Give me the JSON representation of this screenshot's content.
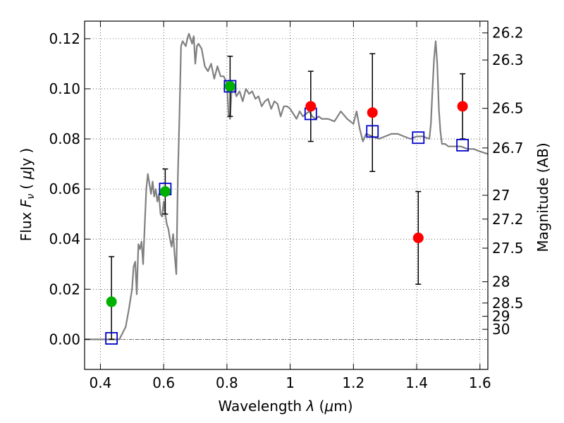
{
  "chart_data": {
    "type": "scatter",
    "xlabel": "Wavelength  λ (μm)",
    "ylabel": "Flux  F_ν  ( μJy )",
    "ylabel_right": "Magnitude (AB)",
    "xlim": [
      0.35,
      1.625
    ],
    "ylim": [
      -0.012,
      0.127
    ],
    "grid": true,
    "x_ticks": [
      0.4,
      0.6,
      0.8,
      1.0,
      1.2,
      1.4,
      1.6
    ],
    "x_tick_labels": [
      "0.4",
      "0.6",
      "0.8",
      "1",
      "1.2",
      "1.4",
      "1.6"
    ],
    "y_ticks": [
      0.0,
      0.02,
      0.04,
      0.06,
      0.08,
      0.1,
      0.12
    ],
    "y_tick_labels": [
      "0.00",
      "0.02",
      "0.04",
      "0.06",
      "0.08",
      "0.10",
      "0.12"
    ],
    "right_ticks": [
      {
        "flux": 0.1223,
        "label": "26.2"
      },
      {
        "flux": 0.1115,
        "label": "26.3"
      },
      {
        "flux": 0.0922,
        "label": "26.5"
      },
      {
        "flux": 0.0764,
        "label": "26.7"
      },
      {
        "flux": 0.0575,
        "label": "27"
      },
      {
        "flux": 0.048,
        "label": "27.2"
      },
      {
        "flux": 0.0364,
        "label": "27.5"
      },
      {
        "flux": 0.023,
        "label": "28"
      },
      {
        "flux": 0.0145,
        "label": "28.5"
      },
      {
        "flux": 0.0092,
        "label": "29"
      },
      {
        "flux": 0.004,
        "label": "30"
      }
    ],
    "series": [
      {
        "kind": "line",
        "color": "#808080",
        "x": [
          0.35,
          0.46,
          0.48,
          0.49,
          0.5,
          0.505,
          0.51,
          0.515,
          0.52,
          0.525,
          0.53,
          0.535,
          0.54,
          0.545,
          0.55,
          0.555,
          0.56,
          0.565,
          0.57,
          0.575,
          0.58,
          0.585,
          0.59,
          0.595,
          0.6,
          0.605,
          0.61,
          0.615,
          0.62,
          0.625,
          0.63,
          0.635,
          0.64,
          0.645,
          0.65,
          0.655,
          0.66,
          0.665,
          0.67,
          0.675,
          0.68,
          0.685,
          0.69,
          0.695,
          0.7,
          0.705,
          0.71,
          0.715,
          0.72,
          0.73,
          0.74,
          0.75,
          0.76,
          0.77,
          0.78,
          0.79,
          0.8,
          0.805,
          0.81,
          0.815,
          0.82,
          0.83,
          0.84,
          0.85,
          0.86,
          0.87,
          0.88,
          0.89,
          0.9,
          0.91,
          0.92,
          0.93,
          0.94,
          0.95,
          0.96,
          0.97,
          0.98,
          0.99,
          1.0,
          1.01,
          1.02,
          1.03,
          1.04,
          1.05,
          1.06,
          1.07,
          1.08,
          1.09,
          1.1,
          1.12,
          1.14,
          1.16,
          1.18,
          1.2,
          1.21,
          1.22,
          1.23,
          1.24,
          1.26,
          1.28,
          1.3,
          1.32,
          1.34,
          1.36,
          1.38,
          1.4,
          1.42,
          1.44,
          1.445,
          1.45,
          1.455,
          1.46,
          1.465,
          1.47,
          1.475,
          1.48,
          1.49,
          1.5,
          1.52,
          1.54,
          1.56,
          1.58,
          1.6,
          1.625
        ],
        "y": [
          0.0,
          0.0,
          0.005,
          0.012,
          0.02,
          0.029,
          0.031,
          0.018,
          0.038,
          0.036,
          0.039,
          0.03,
          0.045,
          0.06,
          0.066,
          0.062,
          0.058,
          0.063,
          0.057,
          0.06,
          0.055,
          0.058,
          0.05,
          0.049,
          0.055,
          0.05,
          0.046,
          0.044,
          0.04,
          0.037,
          0.042,
          0.033,
          0.026,
          0.065,
          0.09,
          0.117,
          0.119,
          0.118,
          0.117,
          0.12,
          0.122,
          0.12,
          0.118,
          0.121,
          0.11,
          0.117,
          0.118,
          0.117,
          0.116,
          0.109,
          0.107,
          0.11,
          0.104,
          0.109,
          0.105,
          0.105,
          0.102,
          0.09,
          0.088,
          0.1,
          0.101,
          0.097,
          0.099,
          0.095,
          0.1,
          0.098,
          0.099,
          0.096,
          0.097,
          0.093,
          0.095,
          0.096,
          0.092,
          0.095,
          0.094,
          0.089,
          0.093,
          0.093,
          0.092,
          0.09,
          0.088,
          0.091,
          0.089,
          0.09,
          0.091,
          0.089,
          0.088,
          0.089,
          0.088,
          0.088,
          0.087,
          0.091,
          0.088,
          0.086,
          0.091,
          0.084,
          0.079,
          0.082,
          0.081,
          0.08,
          0.081,
          0.082,
          0.082,
          0.081,
          0.08,
          0.081,
          0.081,
          0.08,
          0.086,
          0.1,
          0.112,
          0.119,
          0.11,
          0.092,
          0.083,
          0.078,
          0.078,
          0.077,
          0.077,
          0.077,
          0.076,
          0.076,
          0.075,
          0.074
        ]
      },
      {
        "kind": "errorbar",
        "color": "#000000",
        "x": [
          0.435,
          0.605,
          0.81,
          1.065,
          1.26,
          1.405,
          1.545
        ],
        "ylow": [
          0.0,
          0.05,
          0.089,
          0.079,
          0.067,
          0.022,
          0.08
        ],
        "yhigh": [
          0.033,
          0.068,
          0.113,
          0.107,
          0.114,
          0.059,
          0.106
        ]
      },
      {
        "kind": "square-open",
        "color": "#0000cc",
        "x": [
          0.435,
          0.605,
          0.81,
          1.065,
          1.26,
          1.405,
          1.545
        ],
        "y": [
          0.0004,
          0.06,
          0.101,
          0.09,
          0.083,
          0.0805,
          0.0775
        ]
      },
      {
        "kind": "circle-filled",
        "color": "#00b000",
        "x": [
          0.435,
          0.605,
          0.81
        ],
        "y": [
          0.015,
          0.059,
          0.101
        ]
      },
      {
        "kind": "circle-filled",
        "color": "#ff0000",
        "x": [
          1.065,
          1.26,
          1.405,
          1.545
        ],
        "y": [
          0.093,
          0.0905,
          0.0405,
          0.093
        ]
      }
    ]
  }
}
